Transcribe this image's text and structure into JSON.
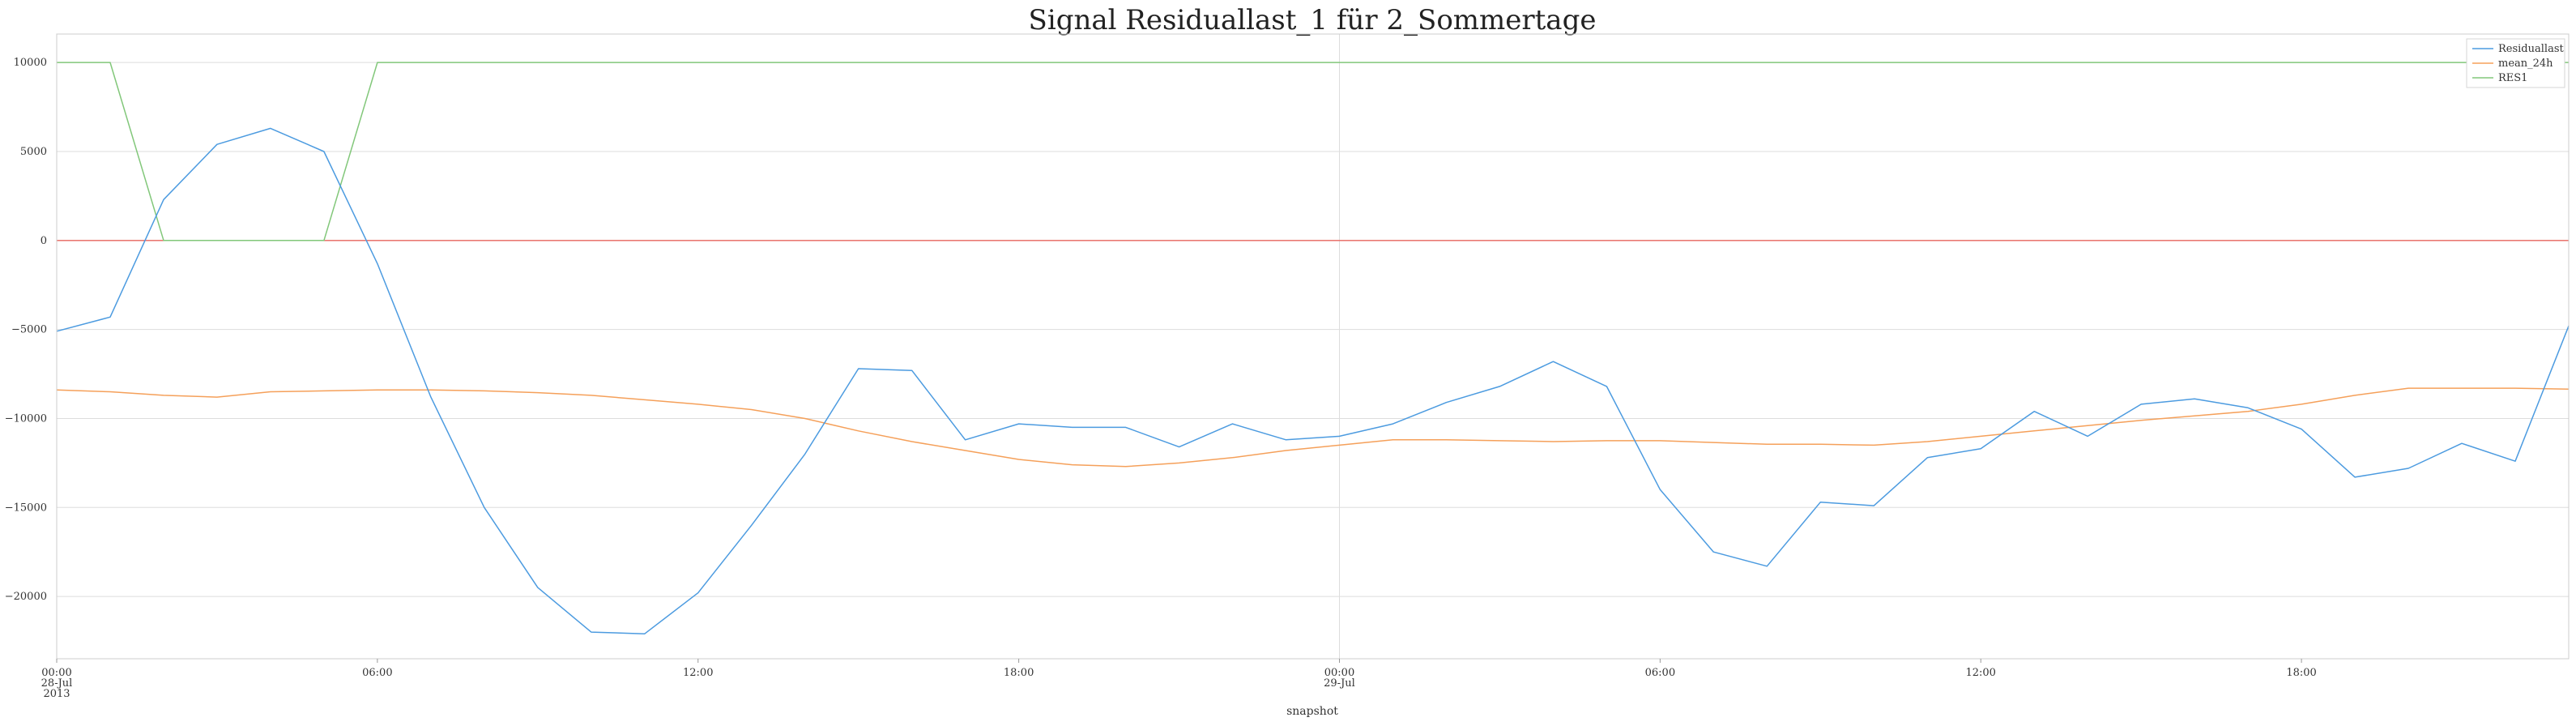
{
  "chart_data": {
    "type": "line",
    "title": "Signal Residuallast_1 für 2_Sommertage",
    "xlabel": "snapshot",
    "ylabel": "",
    "ylim": [
      -23500,
      11600
    ],
    "yticks": [
      10000,
      5000,
      0,
      -5000,
      -10000,
      -15000,
      -20000
    ],
    "ytick_labels": [
      "10000",
      "5000",
      "0",
      "−5000",
      "−10000",
      "−15000",
      "−20000"
    ],
    "x_hours_range": [
      0,
      47
    ],
    "x_ticks": [
      {
        "hour": 0,
        "lines": [
          "00:00",
          "28-Jul",
          "2013"
        ]
      },
      {
        "hour": 6,
        "lines": [
          "06:00"
        ]
      },
      {
        "hour": 12,
        "lines": [
          "12:00"
        ]
      },
      {
        "hour": 18,
        "lines": [
          "18:00"
        ]
      },
      {
        "hour": 24,
        "lines": [
          "00:00",
          "29-Jul"
        ]
      },
      {
        "hour": 30,
        "lines": [
          "06:00"
        ]
      },
      {
        "hour": 36,
        "lines": [
          "12:00"
        ]
      },
      {
        "hour": 42,
        "lines": [
          "18:00"
        ]
      }
    ],
    "grid": true,
    "legend_position": "top-right",
    "reference_line": {
      "y": 0,
      "color": "#e8665e"
    },
    "series": [
      {
        "name": "Residuallast",
        "color": "#4c9be0",
        "values": [
          -5100,
          -4300,
          2300,
          5400,
          6300,
          5000,
          -1300,
          -8800,
          -15000,
          -19500,
          -22000,
          -22100,
          -19800,
          -16000,
          -12000,
          -7200,
          -7300,
          -11200,
          -10300,
          -10500,
          -10500,
          -11600,
          -10300,
          -11200,
          -11000,
          -10300,
          -9100,
          -8200,
          -6800,
          -8200,
          -14000,
          -17500,
          -18300,
          -14700,
          -14900,
          -12200,
          -11700,
          -9600,
          -11000,
          -9200,
          -8900,
          -9400,
          -10600,
          -13300,
          -12800,
          -11400,
          -12400,
          -4800
        ]
      },
      {
        "name": "mean_24h",
        "color": "#f5a05a",
        "values": [
          -8400,
          -8500,
          -8700,
          -8800,
          -8500,
          -8450,
          -8400,
          -8400,
          -8450,
          -8550,
          -8700,
          -8950,
          -9200,
          -9500,
          -10000,
          -10700,
          -11300,
          -11800,
          -12300,
          -12600,
          -12700,
          -12500,
          -12200,
          -11800,
          -11500,
          -11200,
          -11200,
          -11250,
          -11300,
          -11250,
          -11250,
          -11350,
          -11450,
          -11450,
          -11500,
          -11300,
          -11000,
          -10700,
          -10400,
          -10100,
          -9850,
          -9600,
          -9200,
          -8700,
          -8300,
          -8300,
          -8300,
          -8350
        ]
      },
      {
        "name": "RES1",
        "color": "#82c77a",
        "values": [
          10000,
          10000,
          0,
          0,
          0,
          0,
          10000,
          10000,
          10000,
          10000,
          10000,
          10000,
          10000,
          10000,
          10000,
          10000,
          10000,
          10000,
          10000,
          10000,
          10000,
          10000,
          10000,
          10000,
          10000,
          10000,
          10000,
          10000,
          10000,
          10000,
          10000,
          10000,
          10000,
          10000,
          10000,
          10000,
          10000,
          10000,
          10000,
          10000,
          10000,
          10000,
          10000,
          10000,
          10000,
          10000,
          10000,
          10000
        ]
      }
    ]
  }
}
